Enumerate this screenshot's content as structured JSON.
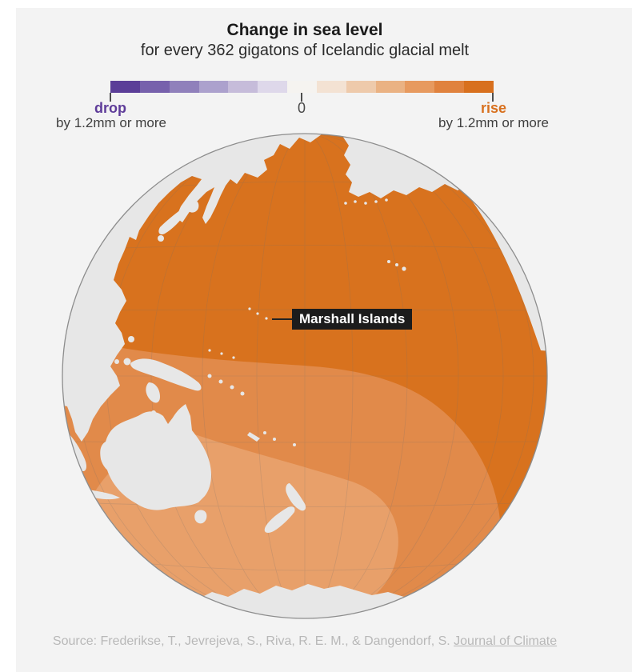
{
  "header": {
    "title": "Change in sea level",
    "subtitle": "for every 362 gigatons of Icelandic glacial melt"
  },
  "legend": {
    "colors": [
      "#5b3e98",
      "#7761ac",
      "#9080bb",
      "#aca1cd",
      "#c6bcda",
      "#ded8ea",
      "#f5f3f0",
      "#f3e2d3",
      "#eecaab",
      "#eab283",
      "#e79a5f",
      "#e0823e",
      "#d8701e"
    ],
    "drop_label": "drop",
    "drop_sublabel": "by 1.2mm or more",
    "zero_label": "0",
    "rise_label": "rise",
    "rise_sublabel": "by 1.2mm or more",
    "drop_color": "#5e3c99",
    "rise_color": "#d8701e"
  },
  "map": {
    "callout_label": "Marshall Islands",
    "ocean_deep": "#d8721e",
    "ocean_medium": "#e18a4a",
    "ocean_light": "#e8a06a",
    "land_color": "#e7e7e7",
    "rim_color": "#8d8d8d"
  },
  "source": {
    "prefix": "Source: Frederikse, T., Jevrejeva, S., Riva, R. E. M., & Dangendorf, S. ",
    "link_label": "Journal of Climate"
  }
}
